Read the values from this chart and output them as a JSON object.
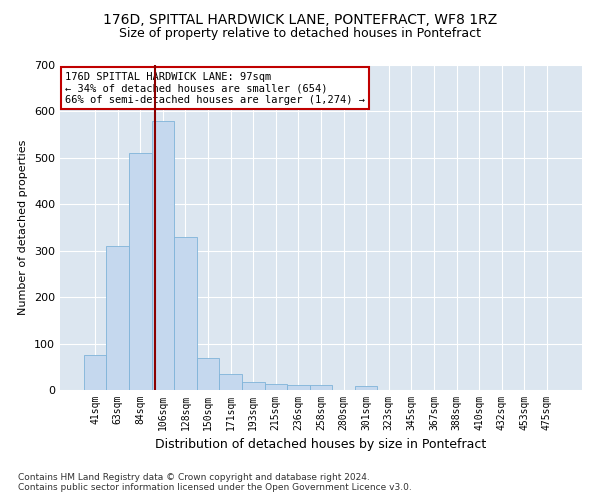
{
  "title": "176D, SPITTAL HARDWICK LANE, PONTEFRACT, WF8 1RZ",
  "subtitle": "Size of property relative to detached houses in Pontefract",
  "xlabel": "Distribution of detached houses by size in Pontefract",
  "ylabel": "Number of detached properties",
  "footnote1": "Contains HM Land Registry data © Crown copyright and database right 2024.",
  "footnote2": "Contains public sector information licensed under the Open Government Licence v3.0.",
  "bin_labels": [
    "41sqm",
    "63sqm",
    "84sqm",
    "106sqm",
    "128sqm",
    "150sqm",
    "171sqm",
    "193sqm",
    "215sqm",
    "236sqm",
    "258sqm",
    "280sqm",
    "301sqm",
    "323sqm",
    "345sqm",
    "367sqm",
    "388sqm",
    "410sqm",
    "432sqm",
    "453sqm",
    "475sqm"
  ],
  "bar_values": [
    75,
    310,
    510,
    580,
    330,
    70,
    35,
    17,
    12,
    10,
    10,
    0,
    8,
    0,
    0,
    0,
    0,
    0,
    0,
    0,
    0
  ],
  "bar_color": "#c5d8ee",
  "bar_edge_color": "#7fb3d9",
  "subject_line_color": "#8b0000",
  "annotation_text": "176D SPITTAL HARDWICK LANE: 97sqm\n← 34% of detached houses are smaller (654)\n66% of semi-detached houses are larger (1,274) →",
  "annotation_box_color": "white",
  "annotation_box_edge_color": "#c00000",
  "ylim": [
    0,
    700
  ],
  "yticks": [
    0,
    100,
    200,
    300,
    400,
    500,
    600,
    700
  ],
  "bg_color": "#dce6f0",
  "title_fontsize": 10,
  "subtitle_fontsize": 9
}
